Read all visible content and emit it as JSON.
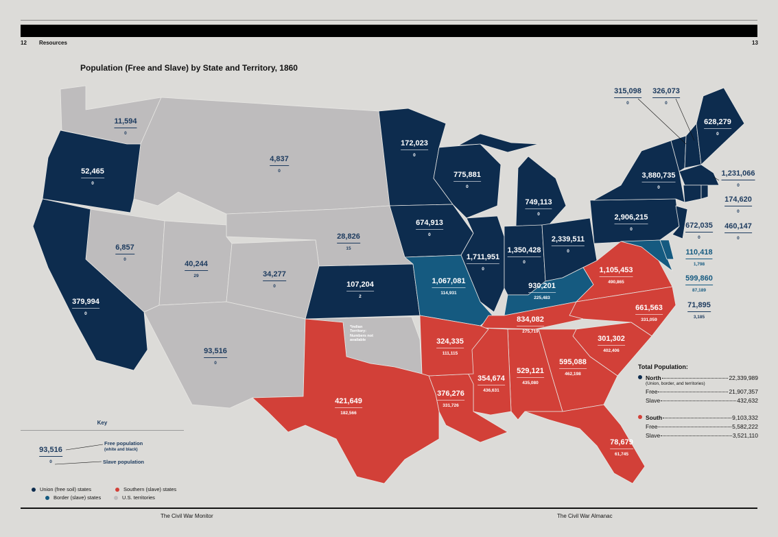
{
  "header": {
    "page_left": "12",
    "section": "Resources",
    "page_right": "13"
  },
  "title": "Population (Free and Slave) by State and Territory, 1860",
  "colors": {
    "union": "#0d2c4e",
    "border": "#155a80",
    "south": "#d24038",
    "territory": "#bebcbd",
    "background": "#dcdbd8"
  },
  "states": {
    "wa": {
      "free": "11,594",
      "slave": "0",
      "group": "territory"
    },
    "or": {
      "free": "52,465",
      "slave": "0",
      "group": "union"
    },
    "ca": {
      "free": "379,994",
      "slave": "0",
      "group": "union"
    },
    "nv": {
      "free": "6,857",
      "slave": "0",
      "group": "territory"
    },
    "ut": {
      "free": "40,244",
      "slave": "29",
      "group": "territory"
    },
    "co": {
      "free": "34,277",
      "slave": "0",
      "group": "territory"
    },
    "nm": {
      "free": "93,516",
      "slave": "0",
      "group": "territory"
    },
    "dk": {
      "free": "4,837",
      "slave": "0",
      "group": "territory"
    },
    "ne": {
      "free": "28,826",
      "slave": "15",
      "group": "territory"
    },
    "ks": {
      "free": "107,204",
      "slave": "2",
      "group": "union"
    },
    "mn": {
      "free": "172,023",
      "slave": "0",
      "group": "union"
    },
    "ia": {
      "free": "674,913",
      "slave": "0",
      "group": "union"
    },
    "mo": {
      "free": "1,067,081",
      "slave": "114,931",
      "group": "border"
    },
    "wi": {
      "free": "775,881",
      "slave": "0",
      "group": "union"
    },
    "il": {
      "free": "1,711,951",
      "slave": "0",
      "group": "union"
    },
    "mi": {
      "free": "749,113",
      "slave": "0",
      "group": "union"
    },
    "in": {
      "free": "1,350,428",
      "slave": "0",
      "group": "union"
    },
    "oh": {
      "free": "2,339,511",
      "slave": "0",
      "group": "union"
    },
    "ky": {
      "free": "930,201",
      "slave": "225,483",
      "group": "border"
    },
    "tx": {
      "free": "421,649",
      "slave": "182,566",
      "group": "south"
    },
    "ar": {
      "free": "324,335",
      "slave": "111,115",
      "group": "south"
    },
    "la": {
      "free": "376,276",
      "slave": "331,726",
      "group": "south"
    },
    "ms": {
      "free": "354,674",
      "slave": "436,631",
      "group": "south"
    },
    "al": {
      "free": "529,121",
      "slave": "435,080",
      "group": "south"
    },
    "tn": {
      "free": "834,082",
      "slave": "275,719",
      "group": "south"
    },
    "ga": {
      "free": "595,088",
      "slave": "462,198",
      "group": "south"
    },
    "fl": {
      "free": "78,679",
      "slave": "61,745",
      "group": "south"
    },
    "sc": {
      "free": "301,302",
      "slave": "402,406",
      "group": "south"
    },
    "nc": {
      "free": "661,563",
      "slave": "331,059",
      "group": "south"
    },
    "va": {
      "free": "1,105,453",
      "slave": "490,865",
      "group": "south"
    },
    "pa": {
      "free": "2,906,215",
      "slave": "0",
      "group": "union"
    },
    "ny": {
      "free": "3,880,735",
      "slave": "0",
      "group": "union"
    },
    "vt": {
      "free": "315,098",
      "slave": "0",
      "group": "union"
    },
    "nh": {
      "free": "326,073",
      "slave": "0",
      "group": "union"
    },
    "me": {
      "free": "628,279",
      "slave": "0",
      "group": "union"
    },
    "ma": {
      "free": "1,231,066",
      "slave": "0",
      "group": "union"
    },
    "ri": {
      "free": "174,620",
      "slave": "0",
      "group": "union"
    },
    "ct": {
      "free": "460,147",
      "slave": "0",
      "group": "union"
    },
    "nj": {
      "free": "672,035",
      "slave": "0",
      "group": "union"
    },
    "de": {
      "free": "110,418",
      "slave": "1,798",
      "group": "border"
    },
    "md": {
      "free": "599,860",
      "slave": "87,189",
      "group": "border"
    },
    "dc": {
      "free": "71,895",
      "slave": "3,185",
      "group": "border"
    }
  },
  "indian_territory_note": "*Indian Territory: Numbers not available",
  "totals": {
    "heading": "Total Population:",
    "north_label": "North",
    "north_value": "22,339,989",
    "north_sub": "(Union, border, and territories)",
    "north_free_label": "Free",
    "north_free": "21,907,357",
    "north_slave_label": "Slave",
    "north_slave": "432,632",
    "south_label": "South",
    "south_value": "9,103,332",
    "south_free_label": "Free",
    "south_free": "5,582,222",
    "south_slave_label": "Slave",
    "south_slave": "3,521,110"
  },
  "key": {
    "title": "Key",
    "sample_free": "93,516",
    "sample_slave": "0",
    "free_label": "Free population",
    "free_sub": "(white and black)",
    "slave_label": "Slave population"
  },
  "legend": {
    "union": "Union (free soil) states",
    "south": "Southern (slave) states",
    "border": "Border (slave) states",
    "territory": "U.S. territories"
  },
  "footer": {
    "left": "The Civil War Monitor",
    "right": "The Civil War Almanac"
  }
}
